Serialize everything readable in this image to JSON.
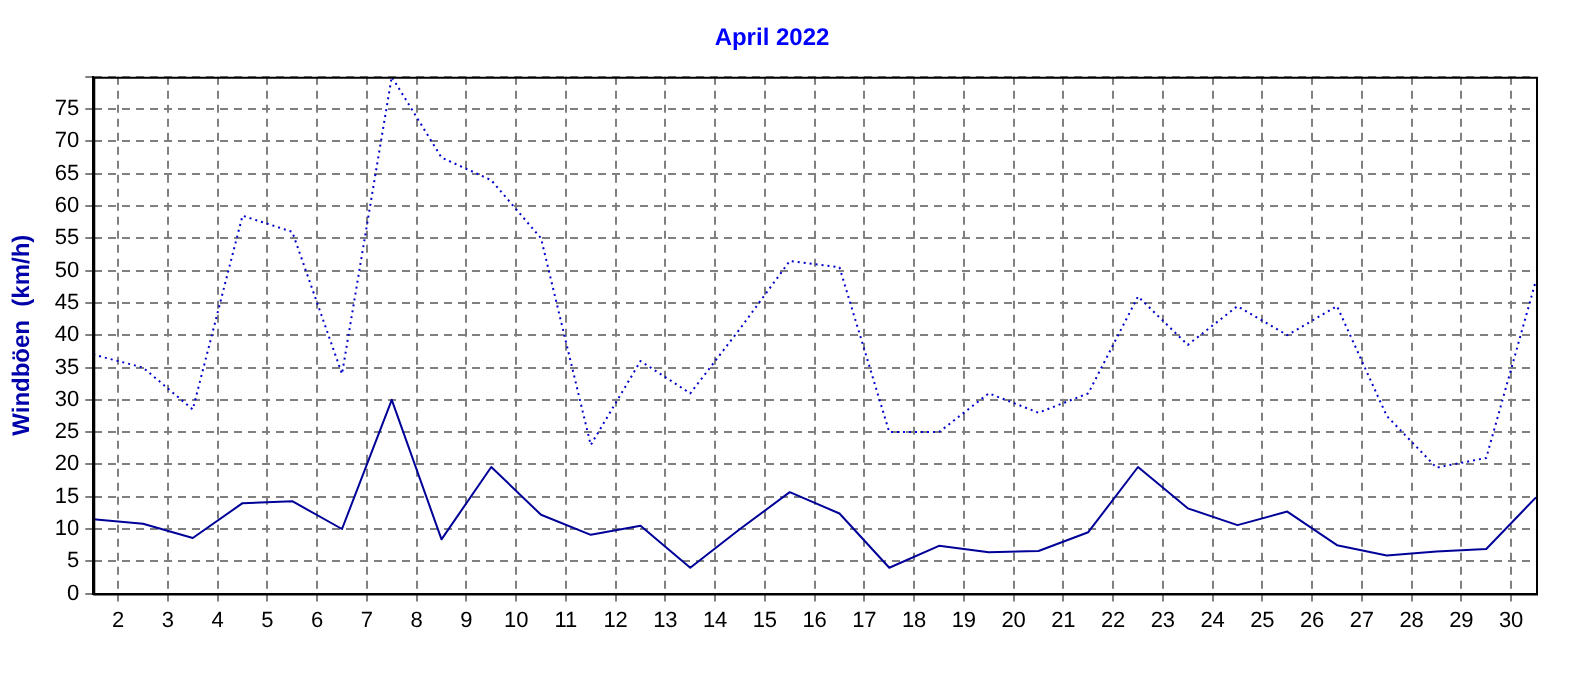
{
  "chart_data": {
    "type": "line",
    "title": "April 2022",
    "ylabel": "Windböen  (km/h)",
    "x": [
      1.5,
      2.5,
      3.5,
      4.5,
      5.5,
      6.5,
      7.5,
      8.5,
      9.5,
      10.5,
      11.5,
      12.5,
      13.5,
      14.5,
      15.5,
      16.5,
      17.5,
      18.5,
      19.5,
      20.5,
      21.5,
      22.5,
      23.5,
      24.5,
      25.5,
      26.5,
      27.5,
      28.5,
      29.5,
      30.5
    ],
    "xlim": [
      1.5,
      30.5
    ],
    "xticks": [
      2,
      3,
      4,
      5,
      6,
      7,
      8,
      9,
      10,
      11,
      12,
      13,
      14,
      15,
      16,
      17,
      18,
      19,
      20,
      21,
      22,
      23,
      24,
      25,
      26,
      27,
      28,
      29,
      30
    ],
    "ylim": [
      0,
      80
    ],
    "yticks": [
      0,
      5,
      10,
      15,
      20,
      25,
      30,
      35,
      40,
      45,
      50,
      55,
      60,
      65,
      70,
      75,
      {
        "value": 80,
        "label": null
      }
    ],
    "series": [
      {
        "color": "#0000cc",
        "line_style": "dotted",
        "values": [
          37,
          35,
          28.5,
          58.5,
          56,
          34,
          80,
          67.5,
          64,
          55,
          23,
          36,
          31,
          41,
          51.5,
          50.5,
          25,
          25,
          31,
          28,
          31,
          46,
          38.5,
          44.5,
          40,
          44.5,
          27.5,
          19.5,
          21,
          48.5
        ]
      },
      {
        "color": "#000099",
        "line_style": "solid",
        "values": [
          11.5,
          10.8,
          8.6,
          14,
          14.3,
          10,
          30,
          8.4,
          19.6,
          12.2,
          9.1,
          10.5,
          4,
          10,
          15.7,
          12.4,
          4,
          7.4,
          6.4,
          6.6,
          9.5,
          19.6,
          13.2,
          10.6,
          12.7,
          7.5,
          5.9,
          6.5,
          6.9,
          14.9
        ]
      }
    ],
    "grid": true,
    "legend": false,
    "marker": "none"
  }
}
